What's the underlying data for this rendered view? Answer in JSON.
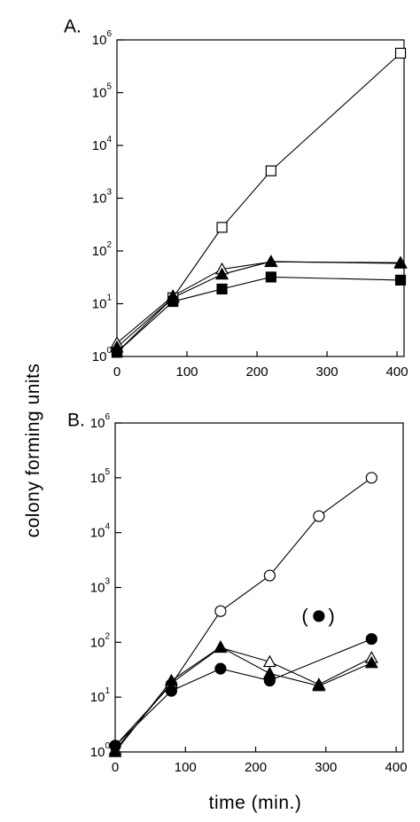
{
  "ylabel": "colony forming units",
  "xlabel": "time  (min.)",
  "chart_data": [
    {
      "type": "line",
      "panel_label": "A.",
      "yscale": "log",
      "ylim": [
        1,
        1000000
      ],
      "xlim": [
        0,
        410
      ],
      "xticks": [
        0,
        100,
        200,
        300,
        400
      ],
      "yticks": [
        1,
        10,
        100,
        1000,
        10000,
        100000,
        1000000
      ],
      "grid": false,
      "series": [
        {
          "marker": "open-square",
          "x": [
            0,
            80,
            150,
            220,
            405
          ],
          "y": [
            1.2,
            13,
            280,
            3300,
            560000
          ]
        },
        {
          "marker": "open-triangle",
          "x": [
            0,
            80,
            150,
            220,
            405
          ],
          "y": [
            1.8,
            14,
            45,
            62,
            60
          ]
        },
        {
          "marker": "filled-triangle",
          "x": [
            0,
            80,
            150,
            220,
            405
          ],
          "y": [
            1.5,
            13,
            36,
            63,
            58
          ]
        },
        {
          "marker": "filled-square",
          "x": [
            0,
            80,
            150,
            220,
            405
          ],
          "y": [
            1.2,
            11,
            19,
            32,
            28
          ]
        }
      ]
    },
    {
      "type": "line",
      "panel_label": "B.",
      "yscale": "log",
      "ylim": [
        1,
        1000000
      ],
      "xlim": [
        0,
        410
      ],
      "xticks": [
        0,
        100,
        200,
        300,
        400
      ],
      "yticks": [
        1,
        10,
        100,
        1000,
        10000,
        100000,
        1000000
      ],
      "grid": false,
      "series": [
        {
          "marker": "open-circle",
          "x": [
            0,
            80,
            150,
            220,
            290,
            365
          ],
          "y": [
            1.3,
            17,
            370,
            1650,
            20000,
            100000
          ]
        },
        {
          "marker": "open-triangle",
          "x": [
            0,
            80,
            150,
            220,
            290,
            365
          ],
          "y": [
            1.1,
            18,
            80,
            44,
            17,
            52
          ]
        },
        {
          "marker": "filled-triangle",
          "x": [
            0,
            80,
            150,
            220,
            290,
            365
          ],
          "y": [
            1.0,
            20,
            82,
            27,
            16,
            42
          ]
        },
        {
          "marker": "filled-circle",
          "x": [
            0,
            80,
            150,
            220,
            365
          ],
          "y": [
            1.3,
            13,
            33,
            20,
            115
          ]
        }
      ],
      "annotations": [
        {
          "text": "(",
          "x": 270,
          "y": 300
        },
        {
          "text": ")",
          "x": 308,
          "y": 300
        }
      ],
      "extra_points": [
        {
          "marker": "filled-circle",
          "x": 290,
          "y": 300
        }
      ]
    }
  ]
}
